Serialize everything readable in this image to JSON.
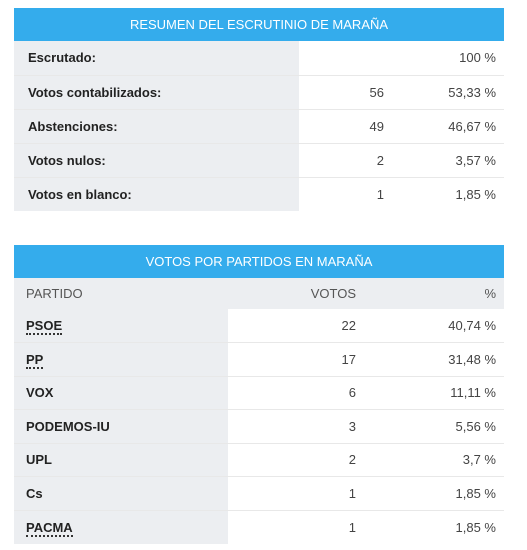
{
  "summary": {
    "title": "RESUMEN DEL ESCRUTINIO DE MARAÑA",
    "rows": [
      {
        "label": "Escrutado:",
        "count": "",
        "pct": "100 %"
      },
      {
        "label": "Votos contabilizados:",
        "count": "56",
        "pct": "53,33 %"
      },
      {
        "label": "Abstenciones:",
        "count": "49",
        "pct": "46,67 %"
      },
      {
        "label": "Votos nulos:",
        "count": "2",
        "pct": "3,57 %"
      },
      {
        "label": "Votos en blanco:",
        "count": "1",
        "pct": "1,85 %"
      }
    ]
  },
  "parties": {
    "title": "VOTOS POR PARTIDOS EN MARAÑA",
    "headers": {
      "party": "PARTIDO",
      "votes": "VOTOS",
      "pct": "%"
    },
    "rows": [
      {
        "name": "PSOE",
        "votes": "22",
        "pct": "40,74 %",
        "linked": true
      },
      {
        "name": "PP",
        "votes": "17",
        "pct": "31,48 %",
        "linked": true
      },
      {
        "name": "VOX",
        "votes": "6",
        "pct": "11,11 %",
        "linked": false
      },
      {
        "name": "PODEMOS-IU",
        "votes": "3",
        "pct": "5,56 %",
        "linked": false
      },
      {
        "name": "UPL",
        "votes": "2",
        "pct": "3,7 %",
        "linked": false
      },
      {
        "name": "Cs",
        "votes": "1",
        "pct": "1,85 %",
        "linked": false
      },
      {
        "name": "PACMA",
        "votes": "1",
        "pct": "1,85 %",
        "linked": true
      }
    ]
  },
  "colors": {
    "header_bar": "#34acec",
    "label_cell": "#eceef1"
  }
}
